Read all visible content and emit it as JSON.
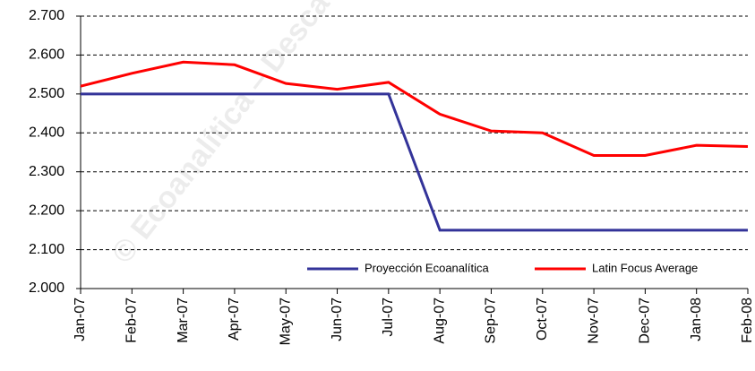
{
  "chart_data": {
    "type": "line",
    "watermark": "© Ecoanalítica – Desca",
    "categories": [
      "Jan-07",
      "Feb-07",
      "Mar-07",
      "Apr-07",
      "May-07",
      "Jun-07",
      "Jul-07",
      "Aug-07",
      "Sep-07",
      "Oct-07",
      "Nov-07",
      "Dec-07",
      "Jan-08",
      "Feb-08"
    ],
    "series": [
      {
        "name": "Proyección Ecoanalítica",
        "color": "#333399",
        "values": [
          2500,
          2500,
          2500,
          2500,
          2500,
          2500,
          2500,
          2150,
          2150,
          2150,
          2150,
          2150,
          2150,
          2150
        ]
      },
      {
        "name": "Latin Focus Average",
        "color": "#ff0000",
        "values": [
          2520,
          2553,
          2582,
          2575,
          2527,
          2512,
          2530,
          2448,
          2405,
          2400,
          2342,
          2342,
          2368,
          2365
        ]
      }
    ],
    "ylim": [
      2000,
      2700
    ],
    "yticks": [
      {
        "value": 2000,
        "label": "2.000"
      },
      {
        "value": 2100,
        "label": "2.100"
      },
      {
        "value": 2200,
        "label": "2.200"
      },
      {
        "value": 2300,
        "label": "2.300"
      },
      {
        "value": 2400,
        "label": "2.400"
      },
      {
        "value": 2500,
        "label": "2.500"
      },
      {
        "value": 2600,
        "label": "2.600"
      },
      {
        "value": 2700,
        "label": "2.700"
      }
    ],
    "grid": true,
    "legend": "lower right"
  }
}
